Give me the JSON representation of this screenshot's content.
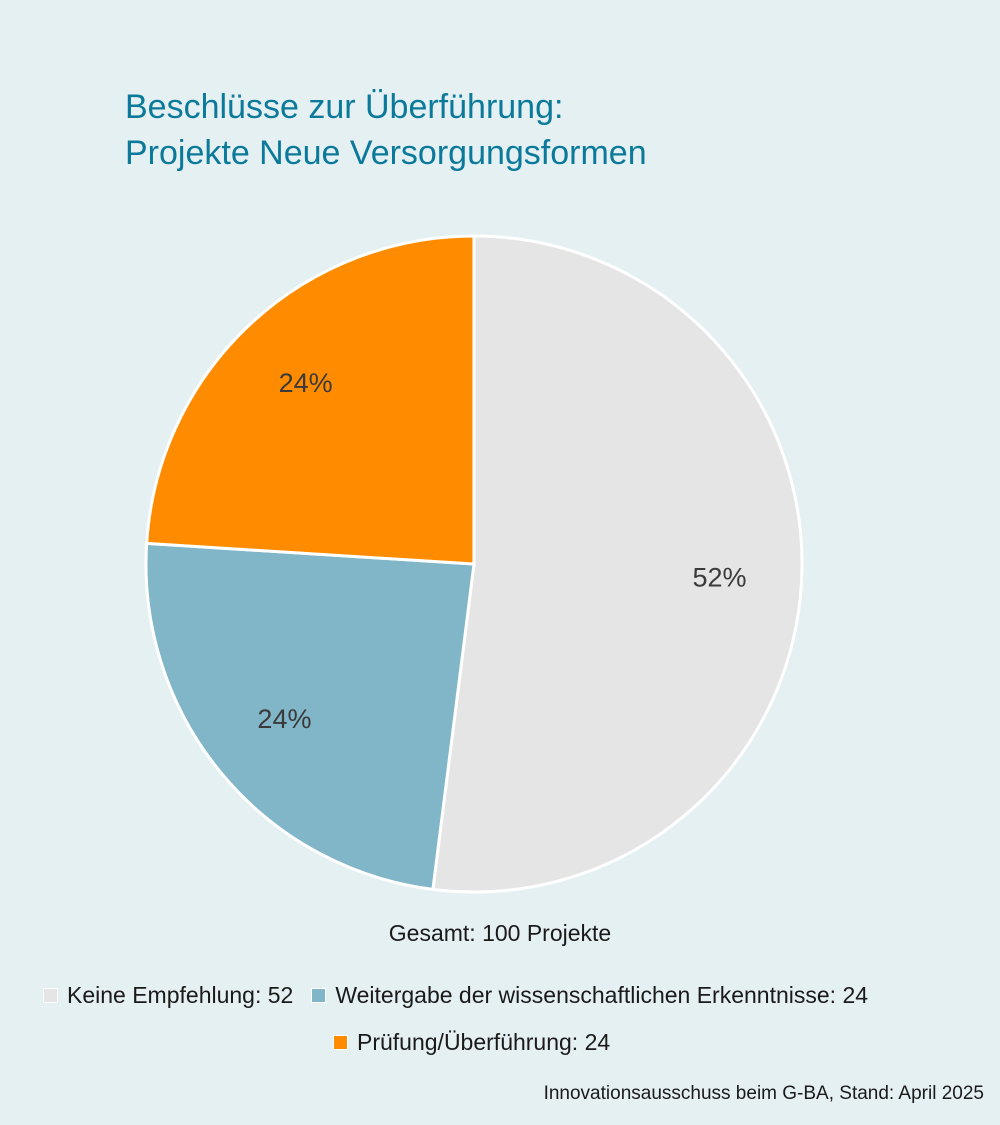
{
  "chart_data": {
    "type": "pie",
    "title": "Beschlüsse zur Überführung:",
    "subtitle": "Projekte Neue Versorgungsformen",
    "total_label": "Gesamt: 100 Projekte",
    "source": "Innovationsausschuss beim G-BA, Stand: April 2025",
    "slices": [
      {
        "label": "Keine Empfehlung",
        "value": 52,
        "percent_label": "52%",
        "legend_text": "Keine Empfehlung: 52",
        "color": "#e5e5e5"
      },
      {
        "label": "Weitergabe der wissenschaftlichen Erkenntnisse",
        "value": 24,
        "percent_label": "24%",
        "legend_text": "Weitergabe der wissenschaftlichen Erkenntnisse: 24",
        "color": "#81b6c9"
      },
      {
        "label": "Prüfung/Überführung",
        "value": 24,
        "percent_label": "24%",
        "legend_text": "Prüfung/Überführung: 24",
        "color": "#ff8c00"
      }
    ],
    "start_angle": "12 o'clock",
    "direction": "clockwise",
    "legend_position": "bottom"
  },
  "colors": {
    "background": "#e5f0f3",
    "title": "#0b7a9a",
    "label_text": "#3a3a3a"
  }
}
